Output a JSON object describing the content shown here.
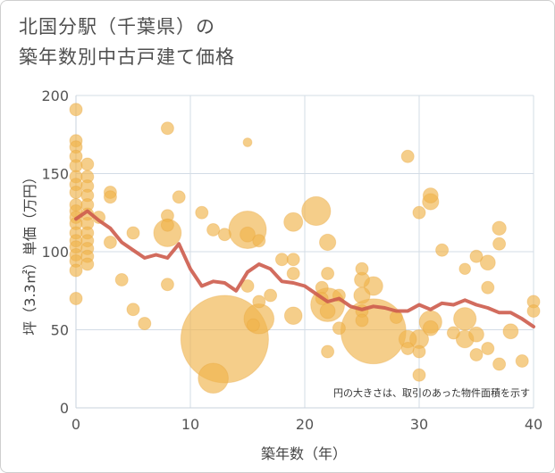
{
  "title": {
    "line1": "北国分駅（千葉県）の",
    "line2": "築年数別中古戸建て価格"
  },
  "chart_data": {
    "type": "scatter",
    "xlabel": "築年数（年）",
    "ylabel": "坪（3.3㎡）単価（万円）",
    "xlim": [
      0,
      40
    ],
    "ylim": [
      0,
      200
    ],
    "x_ticks": [
      "0",
      "10",
      "20",
      "30",
      "40"
    ],
    "y_ticks": [
      "0",
      "50",
      "100",
      "150",
      "200"
    ],
    "annotation": "円の大きさは、取引のあった物件面積を示す",
    "colors": {
      "bubble": "#f0b44c",
      "line": "#cd5c4c",
      "grid": "#d3dce6"
    },
    "scatter": [
      {
        "x": 0,
        "y": 191,
        "s": 1
      },
      {
        "x": 0,
        "y": 171,
        "s": 1
      },
      {
        "x": 0,
        "y": 167,
        "s": 1
      },
      {
        "x": 0,
        "y": 161,
        "s": 1
      },
      {
        "x": 0,
        "y": 155,
        "s": 1
      },
      {
        "x": 0,
        "y": 148,
        "s": 1
      },
      {
        "x": 0,
        "y": 143,
        "s": 1
      },
      {
        "x": 0,
        "y": 138,
        "s": 1
      },
      {
        "x": 0,
        "y": 130,
        "s": 1
      },
      {
        "x": 0,
        "y": 126,
        "s": 1
      },
      {
        "x": 0,
        "y": 122,
        "s": 1
      },
      {
        "x": 0,
        "y": 118,
        "s": 1
      },
      {
        "x": 0,
        "y": 112,
        "s": 1
      },
      {
        "x": 0,
        "y": 107,
        "s": 1
      },
      {
        "x": 0,
        "y": 103,
        "s": 1
      },
      {
        "x": 0,
        "y": 98,
        "s": 1
      },
      {
        "x": 0,
        "y": 94,
        "s": 1
      },
      {
        "x": 0,
        "y": 88,
        "s": 1
      },
      {
        "x": 0,
        "y": 70,
        "s": 1
      },
      {
        "x": 1,
        "y": 156,
        "s": 1
      },
      {
        "x": 1,
        "y": 148,
        "s": 1
      },
      {
        "x": 1,
        "y": 142,
        "s": 1
      },
      {
        "x": 1,
        "y": 136,
        "s": 1
      },
      {
        "x": 1,
        "y": 130,
        "s": 1
      },
      {
        "x": 1,
        "y": 124,
        "s": 1
      },
      {
        "x": 1,
        "y": 118,
        "s": 1
      },
      {
        "x": 1,
        "y": 112,
        "s": 1
      },
      {
        "x": 1,
        "y": 107,
        "s": 1
      },
      {
        "x": 1,
        "y": 102,
        "s": 1
      },
      {
        "x": 1,
        "y": 97,
        "s": 1
      },
      {
        "x": 1,
        "y": 92,
        "s": 1
      },
      {
        "x": 2,
        "y": 122,
        "s": 1
      },
      {
        "x": 3,
        "y": 138,
        "s": 1
      },
      {
        "x": 3,
        "y": 135,
        "s": 1
      },
      {
        "x": 3,
        "y": 106,
        "s": 1
      },
      {
        "x": 4,
        "y": 82,
        "s": 1
      },
      {
        "x": 5,
        "y": 112,
        "s": 1
      },
      {
        "x": 5,
        "y": 63,
        "s": 1
      },
      {
        "x": 6,
        "y": 54,
        "s": 1
      },
      {
        "x": 8,
        "y": 179,
        "s": 1
      },
      {
        "x": 8,
        "y": 123,
        "s": 1
      },
      {
        "x": 8,
        "y": 117,
        "s": 1
      },
      {
        "x": 8,
        "y": 112,
        "s": 2.2
      },
      {
        "x": 8,
        "y": 79,
        "s": 1
      },
      {
        "x": 9,
        "y": 135,
        "s": 1
      },
      {
        "x": 11,
        "y": 125,
        "s": 1
      },
      {
        "x": 12,
        "y": 114,
        "s": 1
      },
      {
        "x": 12,
        "y": 19,
        "s": 2.4
      },
      {
        "x": 13,
        "y": 111,
        "s": 1
      },
      {
        "x": 13,
        "y": 44,
        "s": 7
      },
      {
        "x": 15,
        "y": 170,
        "s": 0.7
      },
      {
        "x": 15,
        "y": 114,
        "s": 3
      },
      {
        "x": 15,
        "y": 111,
        "s": 1.2
      },
      {
        "x": 15,
        "y": 78,
        "s": 1
      },
      {
        "x": 15.5,
        "y": 53,
        "s": 1
      },
      {
        "x": 16,
        "y": 107,
        "s": 1
      },
      {
        "x": 16,
        "y": 68,
        "s": 1
      },
      {
        "x": 16,
        "y": 57,
        "s": 2.4
      },
      {
        "x": 17,
        "y": 72,
        "s": 1
      },
      {
        "x": 18,
        "y": 95,
        "s": 1
      },
      {
        "x": 19,
        "y": 119,
        "s": 1.5
      },
      {
        "x": 19,
        "y": 95,
        "s": 1
      },
      {
        "x": 19,
        "y": 86,
        "s": 1
      },
      {
        "x": 19,
        "y": 59,
        "s": 1.4
      },
      {
        "x": 21,
        "y": 126,
        "s": 2.3
      },
      {
        "x": 21.5,
        "y": 77,
        "s": 1
      },
      {
        "x": 21.5,
        "y": 70,
        "s": 1
      },
      {
        "x": 22,
        "y": 106,
        "s": 1.3
      },
      {
        "x": 22,
        "y": 86,
        "s": 1
      },
      {
        "x": 22,
        "y": 66,
        "s": 2.7
      },
      {
        "x": 22,
        "y": 62,
        "s": 1.2
      },
      {
        "x": 22,
        "y": 36,
        "s": 1
      },
      {
        "x": 23,
        "y": 72,
        "s": 1
      },
      {
        "x": 23,
        "y": 51,
        "s": 1
      },
      {
        "x": 25,
        "y": 89,
        "s": 1
      },
      {
        "x": 25,
        "y": 82,
        "s": 1.2
      },
      {
        "x": 25,
        "y": 72,
        "s": 1.3
      },
      {
        "x": 25,
        "y": 62,
        "s": 1
      },
      {
        "x": 25,
        "y": 56,
        "s": 1
      },
      {
        "x": 26,
        "y": 49,
        "s": 5.2
      },
      {
        "x": 26,
        "y": 78,
        "s": 1.5
      },
      {
        "x": 28,
        "y": 58,
        "s": 1
      },
      {
        "x": 29,
        "y": 161,
        "s": 1
      },
      {
        "x": 29,
        "y": 44,
        "s": 1.4
      },
      {
        "x": 29,
        "y": 38,
        "s": 1
      },
      {
        "x": 30,
        "y": 125,
        "s": 1
      },
      {
        "x": 30,
        "y": 44,
        "s": 1.5
      },
      {
        "x": 30,
        "y": 36,
        "s": 1
      },
      {
        "x": 30,
        "y": 21,
        "s": 1
      },
      {
        "x": 31,
        "y": 136,
        "s": 1.2
      },
      {
        "x": 31,
        "y": 132,
        "s": 1.3
      },
      {
        "x": 31,
        "y": 55,
        "s": 1.8
      },
      {
        "x": 31,
        "y": 51,
        "s": 1.2
      },
      {
        "x": 32,
        "y": 101,
        "s": 1
      },
      {
        "x": 33,
        "y": 48,
        "s": 1
      },
      {
        "x": 34,
        "y": 89,
        "s": 0.9
      },
      {
        "x": 34,
        "y": 57,
        "s": 1.8
      },
      {
        "x": 34,
        "y": 44,
        "s": 1.4
      },
      {
        "x": 35,
        "y": 97,
        "s": 1
      },
      {
        "x": 35,
        "y": 47,
        "s": 1.2
      },
      {
        "x": 35,
        "y": 34,
        "s": 1
      },
      {
        "x": 36,
        "y": 93,
        "s": 1.2
      },
      {
        "x": 36,
        "y": 77,
        "s": 1
      },
      {
        "x": 36,
        "y": 38,
        "s": 1
      },
      {
        "x": 37,
        "y": 115,
        "s": 1.1
      },
      {
        "x": 37,
        "y": 105,
        "s": 1
      },
      {
        "x": 37,
        "y": 28,
        "s": 1
      },
      {
        "x": 38,
        "y": 49,
        "s": 1.2
      },
      {
        "x": 39,
        "y": 30,
        "s": 1
      },
      {
        "x": 40,
        "y": 68,
        "s": 1
      },
      {
        "x": 40,
        "y": 62,
        "s": 1
      }
    ],
    "line": {
      "x": [
        0,
        1,
        2,
        3,
        4,
        5,
        6,
        7,
        8,
        9,
        10,
        11,
        12,
        13,
        14,
        15,
        16,
        17,
        18,
        19,
        20,
        21,
        22,
        23,
        24,
        25,
        26,
        27,
        28,
        29,
        30,
        31,
        32,
        33,
        34,
        35,
        36,
        37,
        38,
        39,
        40
      ],
      "y": [
        121,
        126,
        120,
        115,
        106,
        101,
        96,
        98,
        96,
        105,
        89,
        78,
        81,
        80,
        75,
        87,
        92,
        89,
        81,
        80,
        78,
        73,
        68,
        70,
        65,
        63,
        65,
        64,
        62,
        62,
        66,
        63,
        67,
        66,
        69,
        66,
        64,
        61,
        61,
        57,
        52
      ]
    }
  }
}
